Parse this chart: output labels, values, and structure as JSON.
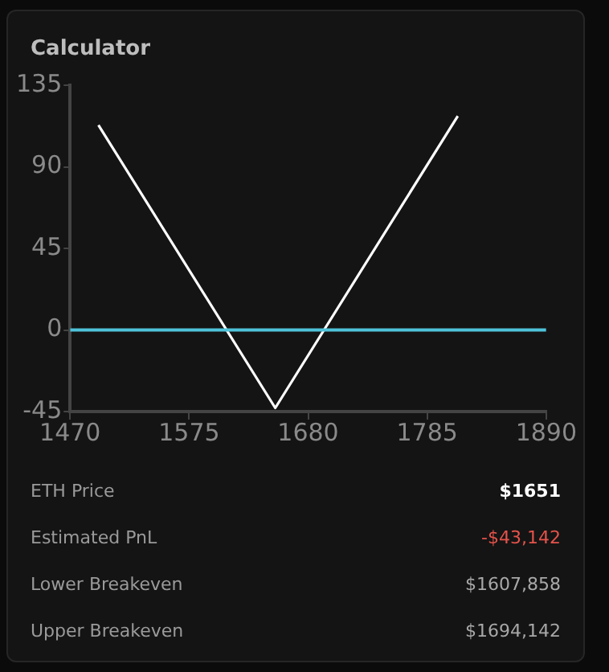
{
  "chart_data": {
    "type": "line",
    "title": "Calculator",
    "series": [
      {
        "color": "#ffffff",
        "x": [
          1495,
          1651,
          1812
        ],
        "values": [
          113,
          -43,
          118
        ]
      }
    ],
    "xlim": [
      1470,
      1890
    ],
    "xticks": [
      1470,
      1575,
      1680,
      1785,
      1890
    ],
    "ylim": [
      -45,
      135
    ],
    "yticks": [
      -45,
      0,
      45,
      90,
      135
    ],
    "ref_lines": [
      {
        "axis": "y",
        "value": 0,
        "label": null,
        "color": "#4fc3da"
      }
    ],
    "grid": false,
    "legend": false,
    "marker": "none",
    "line_style": "solid",
    "annotations": [
      "ETH Price",
      "$1651",
      "Estimated PnL",
      "-$43,142",
      "Lower Breakeven",
      "$1607,858",
      "Upper Breakeven",
      "$1694,142"
    ]
  }
}
